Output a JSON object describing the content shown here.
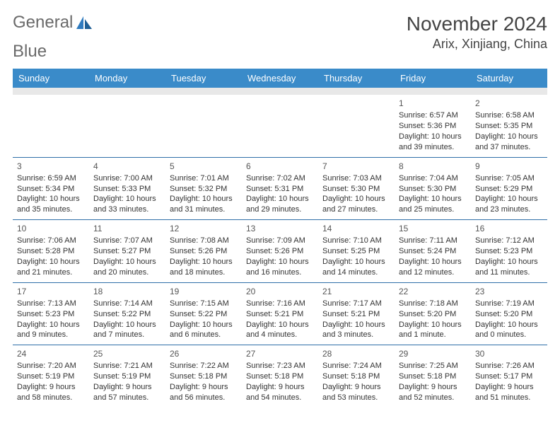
{
  "brand": {
    "word1": "General",
    "word2": "Blue"
  },
  "title": "November 2024",
  "location": "Arix, Xinjiang, China",
  "colors": {
    "header_bg": "#3a8bc9",
    "header_text": "#ffffff",
    "row_divider": "#2f6fa8",
    "spacer_bg": "#e8e8e8",
    "body_text": "#333333",
    "brand_gray": "#6a6a6a",
    "brand_blue": "#2f7bbf"
  },
  "weekdays": [
    "Sunday",
    "Monday",
    "Tuesday",
    "Wednesday",
    "Thursday",
    "Friday",
    "Saturday"
  ],
  "weeks": [
    [
      null,
      null,
      null,
      null,
      null,
      {
        "n": "1",
        "sunrise": "6:57 AM",
        "sunset": "5:36 PM",
        "daylight": "10 hours and 39 minutes."
      },
      {
        "n": "2",
        "sunrise": "6:58 AM",
        "sunset": "5:35 PM",
        "daylight": "10 hours and 37 minutes."
      }
    ],
    [
      {
        "n": "3",
        "sunrise": "6:59 AM",
        "sunset": "5:34 PM",
        "daylight": "10 hours and 35 minutes."
      },
      {
        "n": "4",
        "sunrise": "7:00 AM",
        "sunset": "5:33 PM",
        "daylight": "10 hours and 33 minutes."
      },
      {
        "n": "5",
        "sunrise": "7:01 AM",
        "sunset": "5:32 PM",
        "daylight": "10 hours and 31 minutes."
      },
      {
        "n": "6",
        "sunrise": "7:02 AM",
        "sunset": "5:31 PM",
        "daylight": "10 hours and 29 minutes."
      },
      {
        "n": "7",
        "sunrise": "7:03 AM",
        "sunset": "5:30 PM",
        "daylight": "10 hours and 27 minutes."
      },
      {
        "n": "8",
        "sunrise": "7:04 AM",
        "sunset": "5:30 PM",
        "daylight": "10 hours and 25 minutes."
      },
      {
        "n": "9",
        "sunrise": "7:05 AM",
        "sunset": "5:29 PM",
        "daylight": "10 hours and 23 minutes."
      }
    ],
    [
      {
        "n": "10",
        "sunrise": "7:06 AM",
        "sunset": "5:28 PM",
        "daylight": "10 hours and 21 minutes."
      },
      {
        "n": "11",
        "sunrise": "7:07 AM",
        "sunset": "5:27 PM",
        "daylight": "10 hours and 20 minutes."
      },
      {
        "n": "12",
        "sunrise": "7:08 AM",
        "sunset": "5:26 PM",
        "daylight": "10 hours and 18 minutes."
      },
      {
        "n": "13",
        "sunrise": "7:09 AM",
        "sunset": "5:26 PM",
        "daylight": "10 hours and 16 minutes."
      },
      {
        "n": "14",
        "sunrise": "7:10 AM",
        "sunset": "5:25 PM",
        "daylight": "10 hours and 14 minutes."
      },
      {
        "n": "15",
        "sunrise": "7:11 AM",
        "sunset": "5:24 PM",
        "daylight": "10 hours and 12 minutes."
      },
      {
        "n": "16",
        "sunrise": "7:12 AM",
        "sunset": "5:23 PM",
        "daylight": "10 hours and 11 minutes."
      }
    ],
    [
      {
        "n": "17",
        "sunrise": "7:13 AM",
        "sunset": "5:23 PM",
        "daylight": "10 hours and 9 minutes."
      },
      {
        "n": "18",
        "sunrise": "7:14 AM",
        "sunset": "5:22 PM",
        "daylight": "10 hours and 7 minutes."
      },
      {
        "n": "19",
        "sunrise": "7:15 AM",
        "sunset": "5:22 PM",
        "daylight": "10 hours and 6 minutes."
      },
      {
        "n": "20",
        "sunrise": "7:16 AM",
        "sunset": "5:21 PM",
        "daylight": "10 hours and 4 minutes."
      },
      {
        "n": "21",
        "sunrise": "7:17 AM",
        "sunset": "5:21 PM",
        "daylight": "10 hours and 3 minutes."
      },
      {
        "n": "22",
        "sunrise": "7:18 AM",
        "sunset": "5:20 PM",
        "daylight": "10 hours and 1 minute."
      },
      {
        "n": "23",
        "sunrise": "7:19 AM",
        "sunset": "5:20 PM",
        "daylight": "10 hours and 0 minutes."
      }
    ],
    [
      {
        "n": "24",
        "sunrise": "7:20 AM",
        "sunset": "5:19 PM",
        "daylight": "9 hours and 58 minutes."
      },
      {
        "n": "25",
        "sunrise": "7:21 AM",
        "sunset": "5:19 PM",
        "daylight": "9 hours and 57 minutes."
      },
      {
        "n": "26",
        "sunrise": "7:22 AM",
        "sunset": "5:18 PM",
        "daylight": "9 hours and 56 minutes."
      },
      {
        "n": "27",
        "sunrise": "7:23 AM",
        "sunset": "5:18 PM",
        "daylight": "9 hours and 54 minutes."
      },
      {
        "n": "28",
        "sunrise": "7:24 AM",
        "sunset": "5:18 PM",
        "daylight": "9 hours and 53 minutes."
      },
      {
        "n": "29",
        "sunrise": "7:25 AM",
        "sunset": "5:18 PM",
        "daylight": "9 hours and 52 minutes."
      },
      {
        "n": "30",
        "sunrise": "7:26 AM",
        "sunset": "5:17 PM",
        "daylight": "9 hours and 51 minutes."
      }
    ]
  ],
  "labels": {
    "sunrise": "Sunrise:",
    "sunset": "Sunset:",
    "daylight": "Daylight:"
  }
}
